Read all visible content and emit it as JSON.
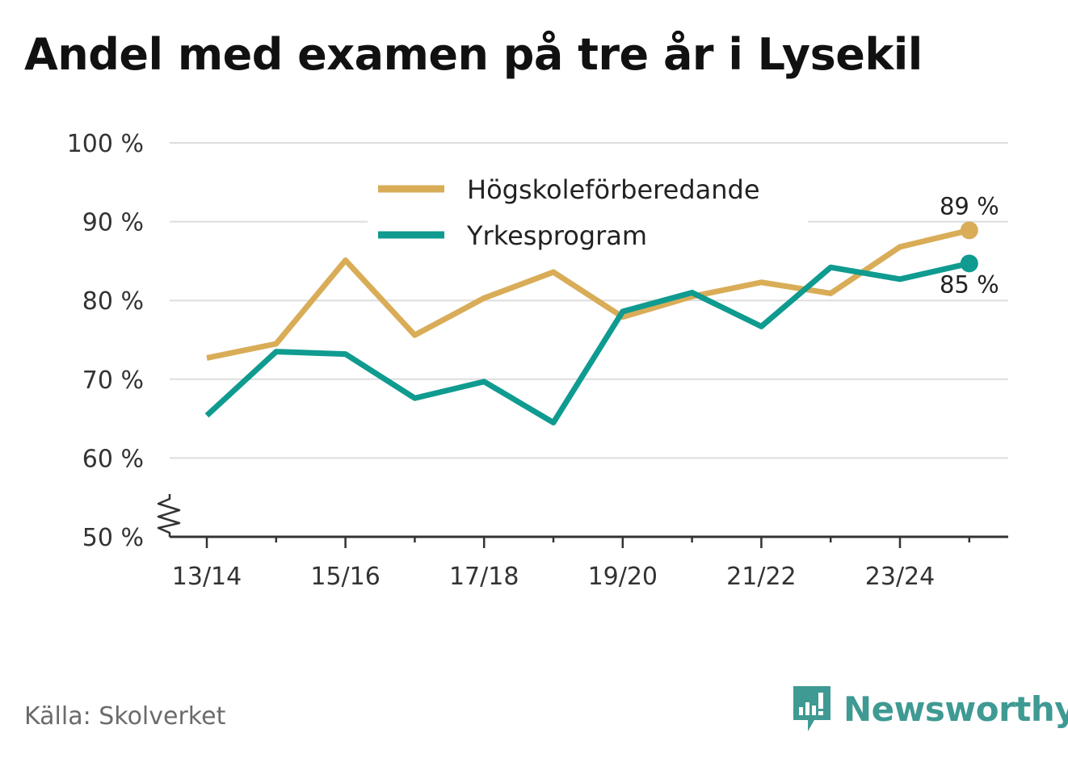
{
  "title": "Andel med examen på tre år i Lysekil",
  "source": "Källa: Skolverket",
  "brand": {
    "name": "Newsworthy",
    "icon": "newsworthy-logo-icon",
    "color": "#3f9a93"
  },
  "chart_data": {
    "type": "line",
    "x": [
      "13/14",
      "14/15",
      "15/16",
      "16/17",
      "17/18",
      "18/19",
      "19/20",
      "20/21",
      "21/22",
      "22/23",
      "23/24",
      "24/25"
    ],
    "x_tick_labels": [
      "13/14",
      "15/16",
      "17/18",
      "19/20",
      "21/22",
      "23/24"
    ],
    "y_tick_labels": [
      "50 %",
      "60 %",
      "70 %",
      "80 %",
      "90 %",
      "100 %"
    ],
    "ylim": [
      50,
      100
    ],
    "y_ticks": [
      50,
      60,
      70,
      80,
      90,
      100
    ],
    "grid": true,
    "axis_break": true,
    "legend": "top-center",
    "series": [
      {
        "name": "Högskoleförberedande",
        "color": "#d9ac57",
        "values": [
          72.7,
          74.5,
          85.1,
          75.6,
          80.3,
          83.6,
          77.9,
          80.5,
          82.3,
          80.9,
          86.8,
          88.9
        ],
        "end_label": "89 %"
      },
      {
        "name": "Yrkesprogram",
        "color": "#0f9b90",
        "values": [
          65.4,
          73.5,
          73.2,
          67.6,
          69.7,
          64.5,
          78.6,
          81.0,
          76.7,
          84.2,
          82.7,
          84.7
        ],
        "end_label": "85 %"
      }
    ]
  }
}
